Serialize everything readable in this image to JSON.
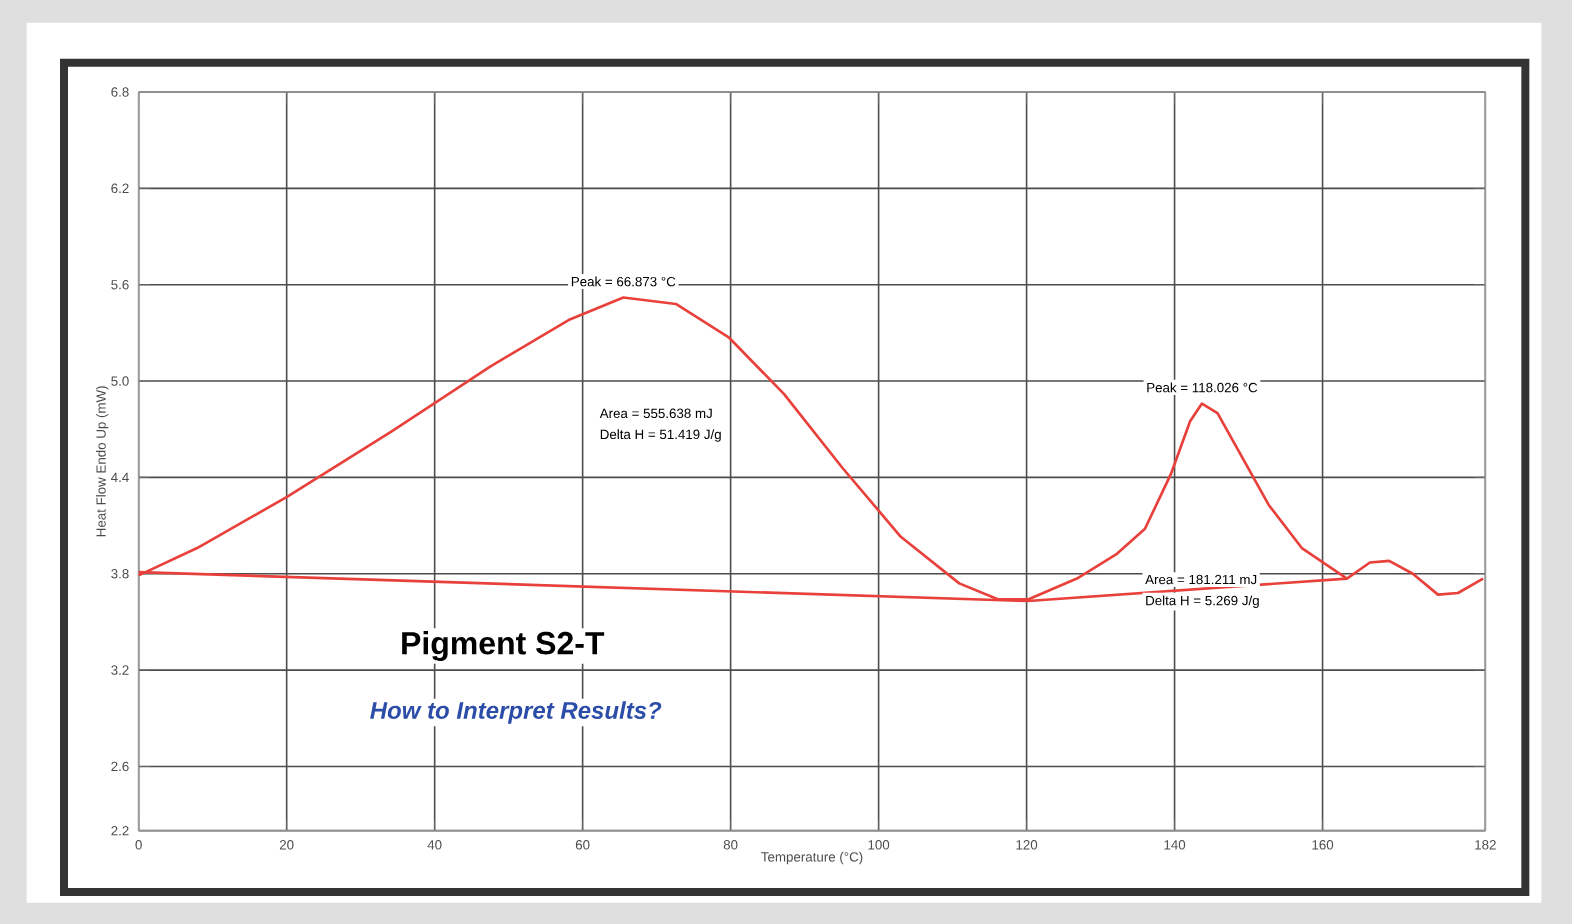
{
  "chart_data": {
    "type": "line",
    "title": "Pigment S2-T",
    "subtitle": "How to Interpret Results?",
    "xlabel": "Temperature (°C)",
    "ylabel": "Heat Flow Endo Up (mW)",
    "xlim": [
      0,
      182
    ],
    "xticks": [
      0,
      20,
      40,
      60,
      80,
      100,
      120,
      140,
      160,
      182
    ],
    "ylim": [
      2.2,
      6.8
    ],
    "yticks": [
      2.2,
      2.6,
      3.2,
      3.8,
      4.4,
      {
        "value": 5,
        "label": "5.0"
      },
      5.6,
      6.2,
      6.8
    ],
    "grid": true,
    "marker": "none",
    "line_style": "solid",
    "series": [
      {
        "color": "#e8413c",
        "x": [
          0,
          7.9,
          20.1,
          34.3,
          47.5,
          58.1,
          65.5,
          72.6,
          79.8,
          87.2,
          95.1,
          103.0,
          110.9,
          116.2,
          120.2,
          126.8,
          132.1,
          136.0,
          139.5,
          142.1,
          143.7,
          145.8,
          149.2,
          152.7,
          157.2,
          163.3,
          166.4,
          169.0,
          172.2,
          175.6,
          178.3,
          181.7
        ],
        "values": [
          3.79,
          3.96,
          4.28,
          4.69,
          5.09,
          5.38,
          5.52,
          5.48,
          5.27,
          4.92,
          4.46,
          4.03,
          3.74,
          3.64,
          3.64,
          3.77,
          3.92,
          4.08,
          4.42,
          4.75,
          4.86,
          4.8,
          4.52,
          4.23,
          3.96,
          3.77,
          3.87,
          3.88,
          3.8,
          3.67,
          3.68,
          3.77
        ]
      },
      {
        "color": "#e8413c",
        "x": [
          0,
          120.2,
          163.3
        ],
        "values": [
          3.81,
          3.63,
          3.77
        ]
      }
    ],
    "annotations": [
      {
        "text": "Peak = 66.873 °C",
        "x": 65.5,
        "y": 5.52
      },
      "Area = 555.638 mJ",
      "Delta H = 51.419 J/g",
      {
        "text": "Peak = 118.026 °C",
        "x": 143.7,
        "y": 4.86
      },
      "Area = 181.211 mJ",
      "Delta H = 5.269 J/g"
    ]
  }
}
